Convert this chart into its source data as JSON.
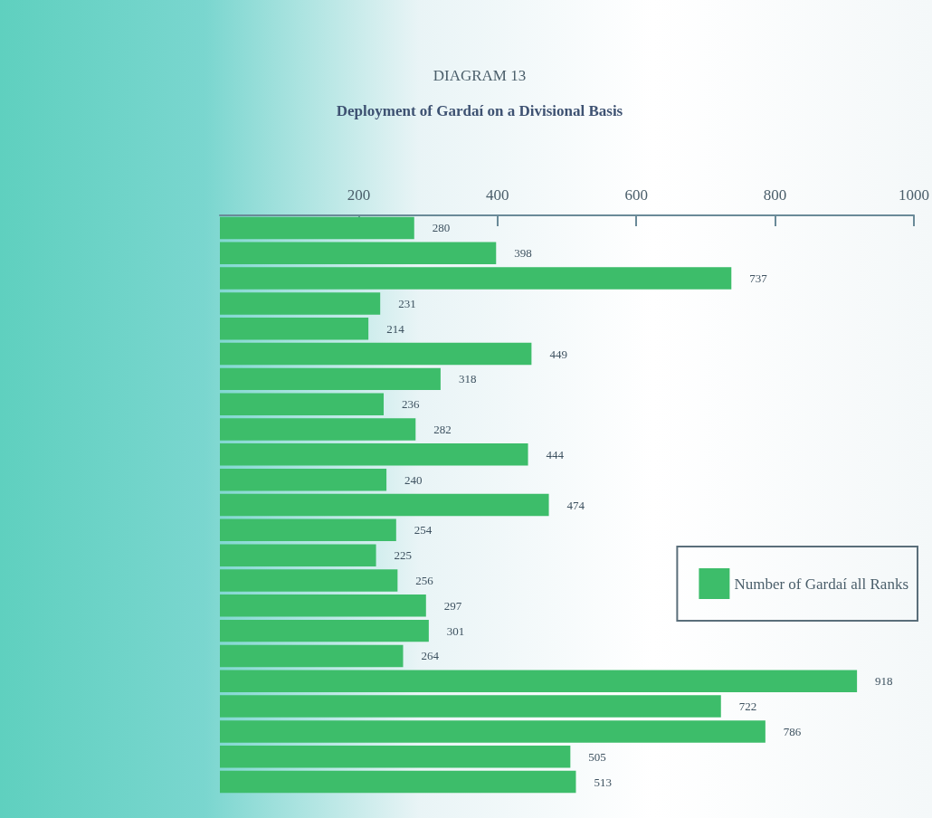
{
  "chart_data": {
    "type": "bar",
    "orientation": "horizontal",
    "title": "DIAGRAM 13",
    "subtitle": "Deployment of Gardaí on a Divisional Basis",
    "categories": [
      null,
      null,
      null,
      null,
      null,
      null,
      null,
      null,
      null,
      null,
      null,
      null,
      null,
      null,
      null,
      null,
      null,
      null,
      null,
      null,
      null,
      null,
      null
    ],
    "series": [
      {
        "name": "Number of Gardaí all Ranks",
        "color": "#3dbd6a",
        "values": [
          280,
          398,
          737,
          231,
          214,
          449,
          318,
          236,
          282,
          444,
          240,
          474,
          254,
          225,
          256,
          297,
          301,
          264,
          918,
          722,
          786,
          505,
          513
        ]
      }
    ],
    "xlim": [
      0,
      1000
    ],
    "xticks": [
      200,
      400,
      600,
      800,
      1000
    ],
    "tick_labels": "x",
    "grid": false,
    "legend": "right",
    "data_labels": true
  }
}
